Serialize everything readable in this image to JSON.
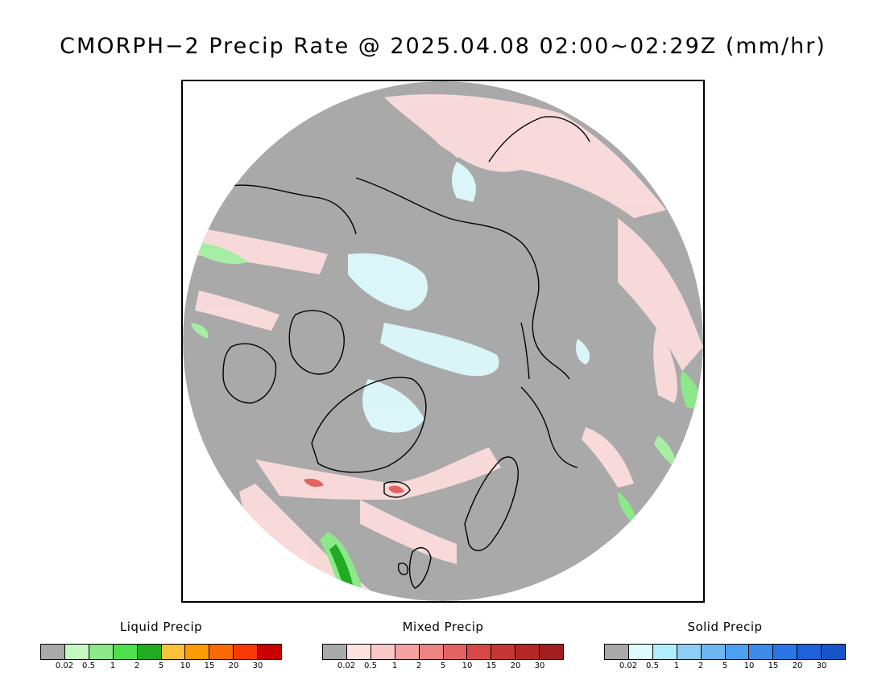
{
  "title": "CMORPH−2 Precip Rate @ 2025.04.08 02:00~02:29Z (mm/hr)",
  "map": {
    "projection": "north-polar-stereographic",
    "background_color": "#a9a9a9",
    "coastline_color": "#000000"
  },
  "legends": [
    {
      "title": "Liquid Precip",
      "colors": [
        "#a9a9a9",
        "#c5f7c0",
        "#8de88a",
        "#4ce04c",
        "#22aa22",
        "#fcc13b",
        "#fc9b04",
        "#fb6a04",
        "#f93a04",
        "#c80000"
      ],
      "ticks": [
        "0.02",
        "0.5",
        "1",
        "2",
        "5",
        "10",
        "15",
        "20",
        "30"
      ]
    },
    {
      "title": "Mixed Precip",
      "colors": [
        "#a9a9a9",
        "#fde1e1",
        "#fbc8c8",
        "#f5a2a2",
        "#ee8383",
        "#e36262",
        "#d84848",
        "#c53636",
        "#b32727",
        "#a21f1f"
      ],
      "ticks": [
        "0.02",
        "0.5",
        "1",
        "2",
        "5",
        "10",
        "15",
        "20",
        "30"
      ]
    },
    {
      "title": "Solid Precip",
      "colors": [
        "#a9a9a9",
        "#defcfc",
        "#b0eefb",
        "#8fcdf7",
        "#6eb7f3",
        "#4da0ef",
        "#3d8be9",
        "#2b76e3",
        "#1f63dc",
        "#1a54c9"
      ],
      "ticks": [
        "0.02",
        "0.5",
        "1",
        "2",
        "5",
        "10",
        "15",
        "20",
        "30"
      ]
    }
  ]
}
